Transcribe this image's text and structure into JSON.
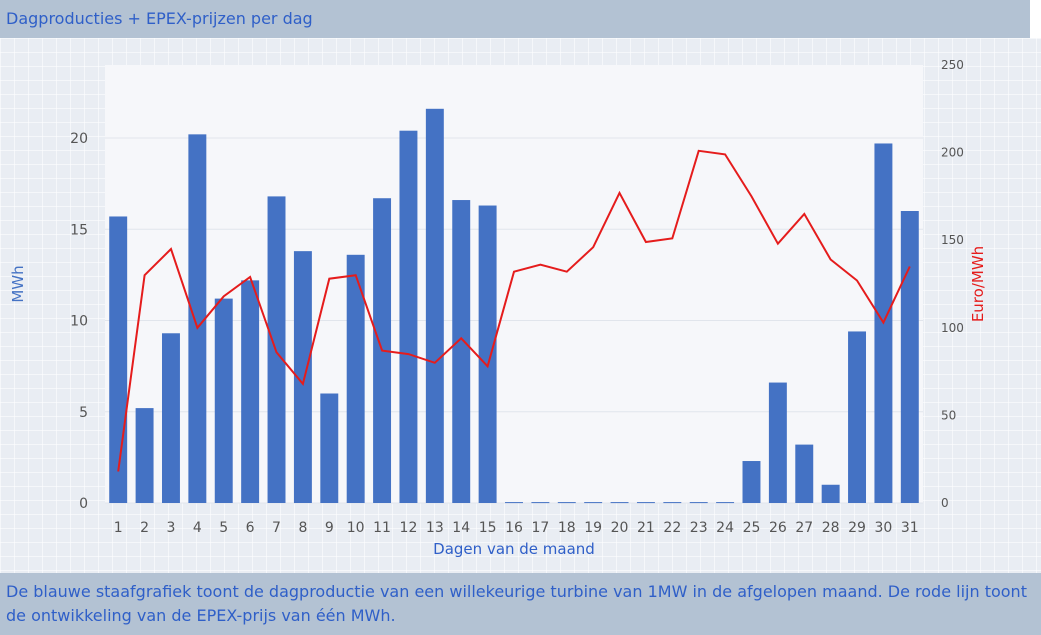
{
  "title": "Dagproducties + EPEX-prijzen per dag",
  "footer_text": "De blauwe staafgrafiek toont de dagproductie van een willekeurige turbine van 1MW in de afgelopen maand. De rode lijn toont de ontwikkeling van de EPEX-prijs van één MWh.",
  "colors": {
    "bar": "#4472c4",
    "line": "#e51c1c",
    "header_bg": "#b3c2d3",
    "header_text": "#2f5fc8"
  },
  "chart_data": {
    "type": "bar",
    "xlabel": "Dagen van de maand",
    "ylabel": "MWh",
    "y2label": "Euro/MWh",
    "ylim": [
      0,
      24
    ],
    "y2lim": [
      0,
      250
    ],
    "yticks": [
      0,
      5,
      10,
      15,
      20
    ],
    "y2ticks": [
      0,
      50,
      100,
      150,
      200,
      250
    ],
    "categories": [
      "1",
      "2",
      "3",
      "4",
      "5",
      "6",
      "7",
      "8",
      "9",
      "10",
      "11",
      "12",
      "13",
      "14",
      "15",
      "16",
      "17",
      "18",
      "19",
      "20",
      "21",
      "22",
      "23",
      "24",
      "25",
      "26",
      "27",
      "28",
      "29",
      "30",
      "31"
    ],
    "series": [
      {
        "type": "bar",
        "axis": "left",
        "values": [
          15.7,
          5.2,
          9.3,
          20.2,
          11.2,
          12.2,
          16.8,
          13.8,
          6.0,
          13.6,
          16.7,
          20.4,
          21.6,
          16.6,
          16.3,
          0.05,
          0.05,
          0.05,
          0.05,
          0.05,
          0.05,
          0.05,
          0.05,
          0.05,
          2.3,
          6.6,
          3.2,
          1.0,
          9.4,
          19.7,
          16.0
        ]
      },
      {
        "type": "line",
        "axis": "right",
        "values": [
          18,
          130,
          145,
          100,
          118,
          129,
          86,
          68,
          128,
          130,
          87,
          85,
          80,
          94,
          78,
          132,
          136,
          132,
          146,
          177,
          149,
          151,
          201,
          199,
          175,
          148,
          165,
          139,
          127,
          103,
          135
        ]
      }
    ]
  }
}
